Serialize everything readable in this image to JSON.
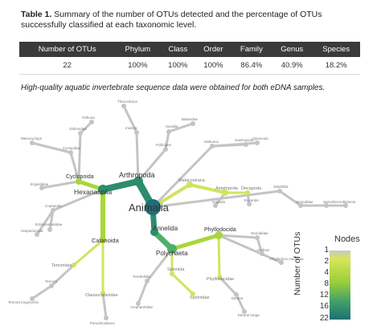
{
  "caption": {
    "label": "Table 1.",
    "text": " Summary of the number of OTUs detected and the percentage of OTUs successfully classified at each taxonomic level."
  },
  "table": {
    "headers": [
      "Number of OTUs",
      "Phylum",
      "Class",
      "Order",
      "Family",
      "Genus",
      "Species"
    ],
    "row": [
      "22",
      "100%",
      "100%",
      "100%",
      "86.4%",
      "40.9%",
      "18.2%"
    ]
  },
  "note": "High-quality aquatic invertebrate sequence data were obtained for both eDNA samples.",
  "tree": {
    "root": "Animalia",
    "labels": {
      "arthropoda": "Arthropoda",
      "hexanauplia": "Hexanauplia",
      "cyclopoida": "Cyclopoida",
      "calanoida": "Calanoida",
      "annelida": "Annelida",
      "polychaeta": "Polychaeta",
      "phyllodocida": "Phyllodocida",
      "temoridae": "Temoridae",
      "clausocalanidae": "Clausocalanidae",
      "pseudocalanus": "Pseudocalanus",
      "temora": "Temora",
      "temoralongicornis": "Temora longicornis",
      "spionida": "Spionida",
      "spionidae": "Spionidae",
      "terebellida": "Terebellida",
      "ampharetidae": "Ampharetidae",
      "phyllodocidae": "Phyllodocidae",
      "eteone": "Eteone",
      "eteonelonga": "Eteone longa",
      "nereididae": "Nereididae",
      "hediste": "Hediste",
      "phyllodoce": "Phyllodoce maculata",
      "malacostraca": "Malacostraca",
      "amphipoda": "Amphipoda",
      "decapoda": "Decapoda",
      "isopoda": "Isopoda",
      "eucarida": "Eucarida",
      "oithonidae": "Oithonidae",
      "oithona": "Oithona",
      "cyclopidae": "Cyclopidae",
      "mesocyclops": "Mesocyclops",
      "ergasilidae": "Ergasilidae",
      "copepoda": "Copepoda",
      "harpacticoida": "Harpacticoida",
      "ectinosomatidae": "Ectinosomatidae",
      "insecta": "Insecta",
      "pollicipes": "Pollicipes",
      "thecostraca": "Thecostraca",
      "sessilia": "Sessilia",
      "balanidae": "Balanidae",
      "mollusca": "Mollusca",
      "gastropoda": "Gastropoda",
      "sipuncula": "Sipuncula",
      "sabellida": "Sabellida",
      "serpulidae": "Serpulidae",
      "spirorbis": "Spirorbis",
      "amblytecta": "Amblytecta"
    }
  },
  "legend": {
    "title": "Nodes",
    "axis_title": "Number of OTUs",
    "ticks": [
      "1",
      "2",
      "4",
      "8",
      "12",
      "16",
      "22"
    ],
    "colors": {
      "low": "#c8c8c8",
      "mid": "#b9d93a",
      "high": "#1f6e74"
    }
  }
}
